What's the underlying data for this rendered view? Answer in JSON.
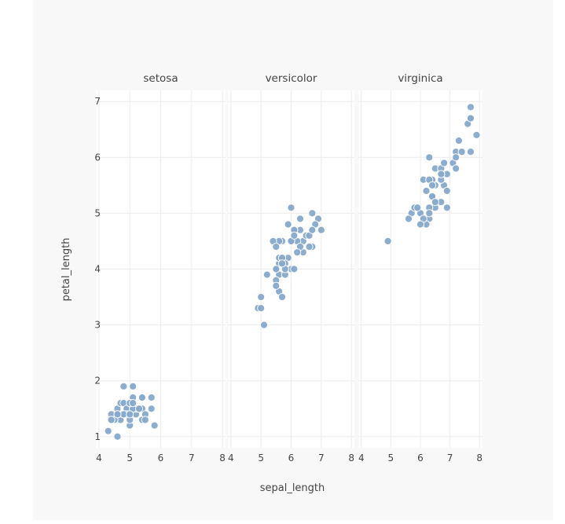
{
  "chart_data": {
    "type": "scatter",
    "facet_titles": [
      "setosa",
      "versicolor",
      "virginica"
    ],
    "xlabel": "sepal_length",
    "ylabel": "petal_length",
    "x_ticks": [
      "4",
      "5",
      "6",
      "7",
      "8"
    ],
    "y_ticks": [
      "1",
      "2",
      "3",
      "4",
      "5",
      "6",
      "7"
    ],
    "xlim": [
      3.9,
      8.1
    ],
    "ylim": [
      0.8,
      7.2
    ],
    "x_tick_values": [
      4,
      5,
      6,
      7,
      8
    ],
    "y_tick_values": [
      1,
      2,
      3,
      4,
      5,
      6,
      7
    ],
    "marker_color": "#87a9cd",
    "grid": true,
    "facets": [
      {
        "name": "setosa",
        "points": [
          [
            5.1,
            1.4
          ],
          [
            4.9,
            1.4
          ],
          [
            4.7,
            1.3
          ],
          [
            4.6,
            1.5
          ],
          [
            5.0,
            1.4
          ],
          [
            5.4,
            1.7
          ],
          [
            4.6,
            1.4
          ],
          [
            5.0,
            1.5
          ],
          [
            4.4,
            1.4
          ],
          [
            4.9,
            1.5
          ],
          [
            5.4,
            1.5
          ],
          [
            4.8,
            1.6
          ],
          [
            4.8,
            1.4
          ],
          [
            4.3,
            1.1
          ],
          [
            5.8,
            1.2
          ],
          [
            5.7,
            1.5
          ],
          [
            5.4,
            1.3
          ],
          [
            5.1,
            1.4
          ],
          [
            5.7,
            1.7
          ],
          [
            5.1,
            1.5
          ],
          [
            5.4,
            1.7
          ],
          [
            5.1,
            1.5
          ],
          [
            4.6,
            1.0
          ],
          [
            5.1,
            1.7
          ],
          [
            4.8,
            1.9
          ],
          [
            5.0,
            1.6
          ],
          [
            5.0,
            1.6
          ],
          [
            5.2,
            1.5
          ],
          [
            5.2,
            1.4
          ],
          [
            4.7,
            1.6
          ],
          [
            4.8,
            1.6
          ],
          [
            5.4,
            1.5
          ],
          [
            5.2,
            1.5
          ],
          [
            5.5,
            1.4
          ],
          [
            4.9,
            1.5
          ],
          [
            5.0,
            1.2
          ],
          [
            5.5,
            1.3
          ],
          [
            4.9,
            1.4
          ],
          [
            4.4,
            1.3
          ],
          [
            5.1,
            1.5
          ],
          [
            5.0,
            1.3
          ],
          [
            4.5,
            1.3
          ],
          [
            4.4,
            1.3
          ],
          [
            5.0,
            1.6
          ],
          [
            5.1,
            1.9
          ],
          [
            4.8,
            1.4
          ],
          [
            5.1,
            1.6
          ],
          [
            4.6,
            1.4
          ],
          [
            5.3,
            1.5
          ],
          [
            5.0,
            1.4
          ]
        ]
      },
      {
        "name": "versicolor",
        "points": [
          [
            7.0,
            4.7
          ],
          [
            6.4,
            4.5
          ],
          [
            6.9,
            4.9
          ],
          [
            5.5,
            4.0
          ],
          [
            6.5,
            4.6
          ],
          [
            5.7,
            4.5
          ],
          [
            6.3,
            4.7
          ],
          [
            4.9,
            3.3
          ],
          [
            6.6,
            4.6
          ],
          [
            5.2,
            3.9
          ],
          [
            5.0,
            3.5
          ],
          [
            5.9,
            4.2
          ],
          [
            6.0,
            4.0
          ],
          [
            6.1,
            4.7
          ],
          [
            5.6,
            3.6
          ],
          [
            6.7,
            4.4
          ],
          [
            5.6,
            4.5
          ],
          [
            5.8,
            4.1
          ],
          [
            6.2,
            4.5
          ],
          [
            5.6,
            3.9
          ],
          [
            5.9,
            4.8
          ],
          [
            6.1,
            4.0
          ],
          [
            6.3,
            4.9
          ],
          [
            6.1,
            4.7
          ],
          [
            6.4,
            4.3
          ],
          [
            6.6,
            4.4
          ],
          [
            6.8,
            4.8
          ],
          [
            6.7,
            5.0
          ],
          [
            6.0,
            4.5
          ],
          [
            5.7,
            3.5
          ],
          [
            5.5,
            3.8
          ],
          [
            5.5,
            3.7
          ],
          [
            5.8,
            3.9
          ],
          [
            6.0,
            5.1
          ],
          [
            5.4,
            4.5
          ],
          [
            6.0,
            4.5
          ],
          [
            6.7,
            4.7
          ],
          [
            6.3,
            4.4
          ],
          [
            5.6,
            4.1
          ],
          [
            5.5,
            4.0
          ],
          [
            5.5,
            4.4
          ],
          [
            6.1,
            4.6
          ],
          [
            5.8,
            4.0
          ],
          [
            5.0,
            3.3
          ],
          [
            5.6,
            4.2
          ],
          [
            5.7,
            4.2
          ],
          [
            5.7,
            4.2
          ],
          [
            6.2,
            4.3
          ],
          [
            5.1,
            3.0
          ],
          [
            5.7,
            4.1
          ]
        ]
      },
      {
        "name": "virginica",
        "points": [
          [
            6.3,
            6.0
          ],
          [
            5.8,
            5.1
          ],
          [
            7.1,
            5.9
          ],
          [
            6.3,
            5.6
          ],
          [
            6.5,
            5.8
          ],
          [
            7.6,
            6.6
          ],
          [
            4.9,
            4.5
          ],
          [
            7.3,
            6.3
          ],
          [
            6.7,
            5.8
          ],
          [
            7.2,
            6.1
          ],
          [
            6.5,
            5.1
          ],
          [
            6.4,
            5.3
          ],
          [
            6.8,
            5.5
          ],
          [
            5.7,
            5.0
          ],
          [
            5.8,
            5.1
          ],
          [
            6.4,
            5.3
          ],
          [
            6.5,
            5.5
          ],
          [
            7.7,
            6.7
          ],
          [
            7.7,
            6.9
          ],
          [
            6.0,
            5.0
          ],
          [
            6.9,
            5.7
          ],
          [
            5.6,
            4.9
          ],
          [
            7.7,
            6.7
          ],
          [
            6.3,
            4.9
          ],
          [
            6.7,
            5.7
          ],
          [
            7.2,
            6.0
          ],
          [
            6.2,
            4.8
          ],
          [
            6.1,
            4.9
          ],
          [
            6.4,
            5.6
          ],
          [
            7.2,
            5.8
          ],
          [
            7.4,
            6.1
          ],
          [
            7.9,
            6.4
          ],
          [
            6.4,
            5.6
          ],
          [
            6.3,
            5.1
          ],
          [
            6.1,
            5.6
          ],
          [
            7.7,
            6.1
          ],
          [
            6.3,
            5.6
          ],
          [
            6.4,
            5.5
          ],
          [
            6.0,
            4.8
          ],
          [
            6.9,
            5.4
          ],
          [
            6.7,
            5.6
          ],
          [
            6.9,
            5.1
          ],
          [
            5.8,
            5.1
          ],
          [
            6.8,
            5.9
          ],
          [
            6.7,
            5.7
          ],
          [
            6.7,
            5.2
          ],
          [
            6.3,
            5.0
          ],
          [
            6.5,
            5.2
          ],
          [
            6.2,
            5.4
          ],
          [
            5.9,
            5.1
          ]
        ]
      }
    ]
  }
}
